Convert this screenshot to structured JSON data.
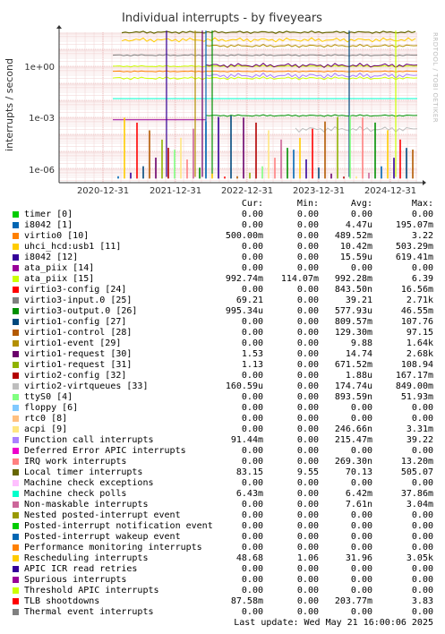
{
  "chart_data": {
    "type": "line",
    "title": "Individual interrupts - by fiveyears",
    "ylabel": "interrupts / second",
    "yscale": "log",
    "ytick_labels": [
      "1e+00",
      "1e-03",
      "1e-06"
    ],
    "xtick_labels": [
      "2020-12-31",
      "2021-12-31",
      "2022-12-31",
      "2023-12-31",
      "2024-12-31"
    ],
    "watermark": "RRDTOOL / TOBI OETIKER",
    "grid": true,
    "columns": [
      "Cur:",
      "Min:",
      "Avg:",
      "Max:"
    ],
    "series": [
      {
        "name": "timer [0]",
        "color": "#00cc00",
        "cur": "0.00",
        "min": "0.00",
        "avg": "0.00",
        "max": "0.00"
      },
      {
        "name": "i8042 [1]",
        "color": "#0066b3",
        "cur": "0.00",
        "min": "0.00",
        "avg": "4.47u",
        "max": "195.07m"
      },
      {
        "name": "virtio0 [10]",
        "color": "#ff8000",
        "cur": "500.00m",
        "min": "0.00",
        "avg": "489.52m",
        "max": "3.22"
      },
      {
        "name": "uhci_hcd:usb1 [11]",
        "color": "#ffcc00",
        "cur": "0.00",
        "min": "0.00",
        "avg": "10.42m",
        "max": "503.29m"
      },
      {
        "name": "i8042 [12]",
        "color": "#330099",
        "cur": "0.00",
        "min": "0.00",
        "avg": "15.59u",
        "max": "619.41m"
      },
      {
        "name": "ata_piix [14]",
        "color": "#990099",
        "cur": "0.00",
        "min": "0.00",
        "avg": "0.00",
        "max": "0.00"
      },
      {
        "name": "ata_piix [15]",
        "color": "#ccff00",
        "cur": "992.74m",
        "min": "114.07m",
        "avg": "992.28m",
        "max": "6.39"
      },
      {
        "name": "virtio3-config [24]",
        "color": "#ff0000",
        "cur": "0.00",
        "min": "0.00",
        "avg": "843.50n",
        "max": "16.56m"
      },
      {
        "name": "virtio3-input.0 [25]",
        "color": "#808080",
        "cur": "69.21",
        "min": "0.00",
        "avg": "39.21",
        "max": "2.71k"
      },
      {
        "name": "virtio3-output.0 [26]",
        "color": "#008f00",
        "cur": "995.34u",
        "min": "0.00",
        "avg": "577.93u",
        "max": "46.55m"
      },
      {
        "name": "virtio1-config [27]",
        "color": "#00487d",
        "cur": "0.00",
        "min": "0.00",
        "avg": "809.57m",
        "max": "107.76"
      },
      {
        "name": "virtio1-control [28]",
        "color": "#b35a00",
        "cur": "0.00",
        "min": "0.00",
        "avg": "129.30m",
        "max": "97.15"
      },
      {
        "name": "virtio1-event [29]",
        "color": "#b38f00",
        "cur": "0.00",
        "min": "0.00",
        "avg": "9.88",
        "max": "1.64k"
      },
      {
        "name": "virtio1-request [30]",
        "color": "#6b006b",
        "cur": "1.53",
        "min": "0.00",
        "avg": "14.74",
        "max": "2.68k"
      },
      {
        "name": "virtio1-request [31]",
        "color": "#8fb300",
        "cur": "1.13",
        "min": "0.00",
        "avg": "671.52m",
        "max": "108.94"
      },
      {
        "name": "virtio2-config [32]",
        "color": "#b30000",
        "cur": "0.00",
        "min": "0.00",
        "avg": "1.88u",
        "max": "167.17m"
      },
      {
        "name": "virtio2-virtqueues [33]",
        "color": "#bebebe",
        "cur": "160.59u",
        "min": "0.00",
        "avg": "174.74u",
        "max": "849.00m"
      },
      {
        "name": "ttyS0 [4]",
        "color": "#80ff80",
        "cur": "0.00",
        "min": "0.00",
        "avg": "893.59n",
        "max": "51.93m"
      },
      {
        "name": "floppy [6]",
        "color": "#80c9ff",
        "cur": "0.00",
        "min": "0.00",
        "avg": "0.00",
        "max": "0.00"
      },
      {
        "name": "rtc0 [8]",
        "color": "#ffc080",
        "cur": "0.00",
        "min": "0.00",
        "avg": "0.00",
        "max": "0.00"
      },
      {
        "name": "acpi [9]",
        "color": "#ffe680",
        "cur": "0.00",
        "min": "0.00",
        "avg": "246.66n",
        "max": "3.31m"
      },
      {
        "name": "Function call interrupts",
        "color": "#aa80ff",
        "cur": "91.44m",
        "min": "0.00",
        "avg": "215.47m",
        "max": "39.22"
      },
      {
        "name": "Deferred Error APIC interrupts",
        "color": "#ee00cc",
        "cur": "0.00",
        "min": "0.00",
        "avg": "0.00",
        "max": "0.00"
      },
      {
        "name": "IRQ work interrupts",
        "color": "#ff8080",
        "cur": "0.00",
        "min": "0.00",
        "avg": "269.30n",
        "max": "13.20m"
      },
      {
        "name": "Local timer interrupts",
        "color": "#666600",
        "cur": "83.15",
        "min": "9.55",
        "avg": "70.13",
        "max": "505.07"
      },
      {
        "name": "Machine check exceptions",
        "color": "#ffbfff",
        "cur": "0.00",
        "min": "0.00",
        "avg": "0.00",
        "max": "0.00"
      },
      {
        "name": "Machine check polls",
        "color": "#00ffcc",
        "cur": "6.43m",
        "min": "0.00",
        "avg": "6.42m",
        "max": "37.86m"
      },
      {
        "name": "Non-maskable interrupts",
        "color": "#cc6699",
        "cur": "0.00",
        "min": "0.00",
        "avg": "7.61n",
        "max": "3.04m"
      },
      {
        "name": "Nested posted-interrupt event",
        "color": "#999900",
        "cur": "0.00",
        "min": "0.00",
        "avg": "0.00",
        "max": "0.00"
      },
      {
        "name": "Posted-interrupt notification event",
        "color": "#00cc00",
        "cur": "0.00",
        "min": "0.00",
        "avg": "0.00",
        "max": "0.00"
      },
      {
        "name": "Posted-interrupt wakeup event",
        "color": "#0066b3",
        "cur": "0.00",
        "min": "0.00",
        "avg": "0.00",
        "max": "0.00"
      },
      {
        "name": "Performance monitoring interrupts",
        "color": "#ff8000",
        "cur": "0.00",
        "min": "0.00",
        "avg": "0.00",
        "max": "0.00"
      },
      {
        "name": "Rescheduling interrupts",
        "color": "#ffcc00",
        "cur": "48.68",
        "min": "1.06",
        "avg": "31.96",
        "max": "3.05k"
      },
      {
        "name": "APIC ICR read retries",
        "color": "#330099",
        "cur": "0.00",
        "min": "0.00",
        "avg": "0.00",
        "max": "0.00"
      },
      {
        "name": "Spurious interrupts",
        "color": "#990099",
        "cur": "0.00",
        "min": "0.00",
        "avg": "0.00",
        "max": "0.00"
      },
      {
        "name": "Threshold APIC interrupts",
        "color": "#ccff00",
        "cur": "0.00",
        "min": "0.00",
        "avg": "0.00",
        "max": "0.00"
      },
      {
        "name": "TLB shootdowns",
        "color": "#ff0000",
        "cur": "87.58m",
        "min": "0.00",
        "avg": "203.77m",
        "max": "3.83"
      },
      {
        "name": "Thermal event interrupts",
        "color": "#808080",
        "cur": "0.00",
        "min": "0.00",
        "avg": "0.00",
        "max": "0.00"
      }
    ],
    "footer": "Last update: Wed May 21 16:00:06 2025"
  }
}
